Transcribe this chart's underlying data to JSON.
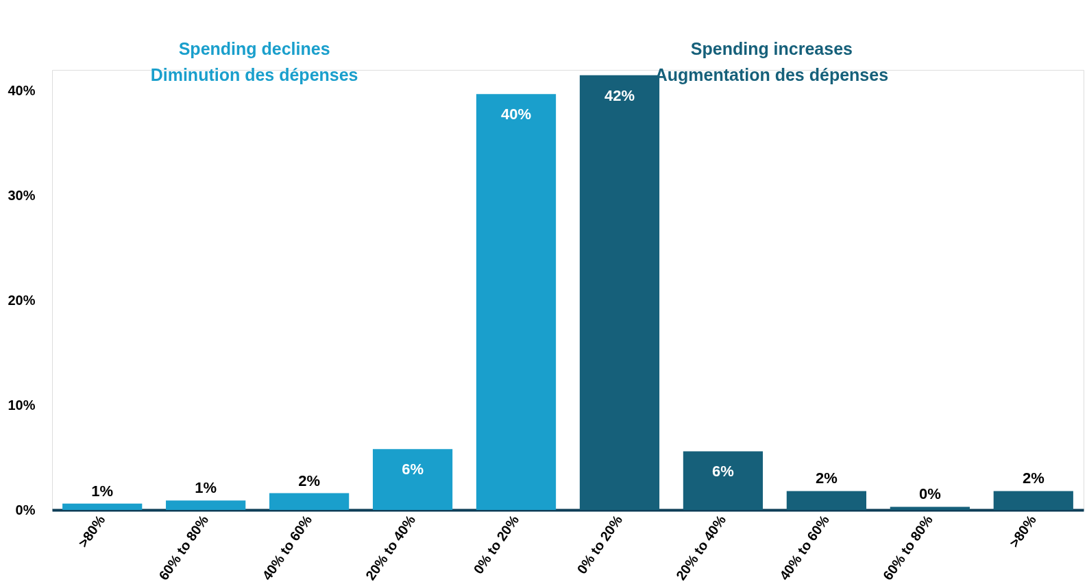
{
  "chart_data": {
    "type": "bar",
    "categories": [
      ">80%",
      "60% to 80%",
      "40% to 60%",
      "20% to 40%",
      "0% to 20%",
      "0% to 20%",
      "20% to 40%",
      "40% to 60%",
      "60% to 80%",
      ">80%"
    ],
    "series": [
      {
        "name": "Spending declines\nDiminution des dépenses",
        "color": "#1a9fcc",
        "values": [
          0.6,
          0.9,
          1.6,
          5.8,
          39.7,
          null,
          null,
          null,
          null,
          null
        ],
        "value_labels": [
          "1%",
          "1%",
          "2%",
          "6%",
          "40%",
          null,
          null,
          null,
          null,
          null
        ]
      },
      {
        "name": "Spending increases\nAugmentation des dépenses",
        "color": "#16607a",
        "values": [
          null,
          null,
          null,
          null,
          null,
          41.5,
          5.6,
          1.8,
          0.3,
          1.8
        ],
        "value_labels": [
          null,
          null,
          null,
          null,
          null,
          "42%",
          "6%",
          "2%",
          "0%",
          "2%"
        ]
      }
    ],
    "ylim": [
      0,
      42
    ],
    "yticks": [
      {
        "value": 0,
        "label": "0%"
      },
      {
        "value": 10,
        "label": "10%"
      },
      {
        "value": 20,
        "label": "20%"
      },
      {
        "value": 30,
        "label": "30%"
      },
      {
        "value": 40,
        "label": "40%"
      }
    ],
    "grid": false
  }
}
